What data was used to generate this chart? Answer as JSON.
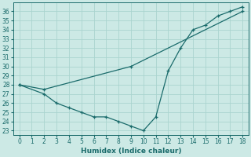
{
  "line1_x": [
    0,
    2,
    9,
    18
  ],
  "line1_y": [
    28,
    27.5,
    30,
    36
  ],
  "line2_x": [
    0,
    2,
    3,
    4,
    5,
    6,
    7,
    8,
    9,
    10,
    11,
    12,
    13,
    14,
    15,
    16,
    17,
    18
  ],
  "line2_y": [
    28,
    27,
    26,
    25.5,
    25,
    24.5,
    24.5,
    24,
    23.5,
    23,
    24.5,
    29.5,
    32,
    34,
    34.5,
    35.5,
    36,
    36.5
  ],
  "line_color": "#1a6b6b",
  "bg_color": "#cce9e5",
  "grid_color": "#aad4cf",
  "xlabel": "Humidex (Indice chaleur)",
  "xlim": [
    -0.5,
    18.5
  ],
  "ylim": [
    22.5,
    37
  ],
  "yticks": [
    23,
    24,
    25,
    26,
    27,
    28,
    29,
    30,
    31,
    32,
    33,
    34,
    35,
    36
  ],
  "xticks": [
    0,
    1,
    2,
    3,
    4,
    5,
    6,
    7,
    8,
    9,
    10,
    11,
    12,
    13,
    14,
    15,
    16,
    17,
    18
  ],
  "tick_fontsize": 5.5,
  "xlabel_fontsize": 6.5,
  "marker": "+"
}
